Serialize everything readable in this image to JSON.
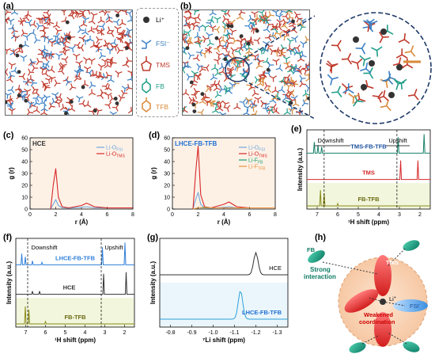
{
  "panels": {
    "a": {
      "label": "(a)"
    },
    "b": {
      "label": "(b)"
    },
    "c": {
      "label": "(c)",
      "title": "HCE",
      "legend": [
        "Li-O",
        "Li-O"
      ],
      "legend_sub": [
        "FSI",
        "TMS"
      ],
      "xlabel": "r (Å)",
      "ylabel": "g (r)",
      "yticks": [
        "0",
        "10",
        "20",
        "30",
        "40",
        "50",
        "60"
      ],
      "xticks": [
        "0",
        "2",
        "4",
        "6",
        "8"
      ]
    },
    "d": {
      "label": "(d)",
      "title": "LHCE-FB-TFB",
      "legend": [
        "Li-O",
        "Li-O",
        "Li-F",
        "Li-F"
      ],
      "legend_sub": [
        "FSI",
        "TMS",
        "FB",
        "TFB"
      ],
      "xlabel": "r (Å)",
      "ylabel": "g (r)",
      "yticks": [
        "0",
        "10",
        "20",
        "30",
        "40",
        "50",
        "60"
      ],
      "xticks": [
        "0",
        "2",
        "4",
        "6",
        "8"
      ]
    },
    "e": {
      "label": "(e)",
      "downshift": "Downshift",
      "upshift": "Upshift",
      "traces": [
        "TMS-FB-TFB",
        "TMS",
        "FB-TFB"
      ],
      "ylabel": "Intensity (a.u.)",
      "xlabel": "¹H shift (ppm)",
      "xticks": [
        "7",
        "6",
        "5",
        "4",
        "3",
        "2"
      ]
    },
    "f": {
      "label": "(f)",
      "downshift": "Downshift",
      "upshift": "Upshift",
      "traces": [
        "LHCE-FB-TFB",
        "HCE",
        "FB-TFB"
      ],
      "ylabel": "Intensity (a.u.)",
      "xlabel": "¹H shift (ppm)",
      "xticks": [
        "7",
        "6",
        "5",
        "4",
        "3",
        "2"
      ]
    },
    "g": {
      "label": "(g)",
      "traces": [
        "HCE",
        "LHCE-FB-TFB"
      ],
      "ylabel": "Intensity (a.u.)",
      "xlabel": "⁷Li shift (ppm)",
      "xticks": [
        "-0.8",
        "-0.9",
        "-1.0",
        "-1.1",
        "-1.2",
        "-1.3"
      ]
    },
    "h": {
      "label": "(h)",
      "fb": "FB",
      "tms": "TMS",
      "li": "Li",
      "fsi": "FSI",
      "strong": "Strong interaction",
      "weakened": "Weakened coordination"
    }
  },
  "legend_ab": {
    "items": [
      {
        "name": "Li⁺",
        "color": "#333333"
      },
      {
        "name": "FSI⁻",
        "color": "#3b7fc4"
      },
      {
        "name": "TMS",
        "color": "#c0392b"
      },
      {
        "name": "FB",
        "color": "#1f9e89"
      },
      {
        "name": "TFB",
        "color": "#d98a3a"
      }
    ]
  },
  "colors": {
    "fsi": "#6fa8dc",
    "tms": "#d62728",
    "fb": "#1a9e6f",
    "tfb": "#e69138",
    "panel_bg": "#fdf1e6"
  },
  "chart_data": [
    {
      "type": "line",
      "title": "HCE",
      "xlabel": "r (Å)",
      "ylabel": "g (r)",
      "xlim": [
        0,
        8
      ],
      "ylim": [
        0,
        60
      ],
      "series": [
        {
          "name": "Li-O FSI",
          "x": [
            1.6,
            1.8,
            2.0,
            2.2,
            2.5,
            3.0,
            4.0,
            4.4,
            5.0,
            6.0,
            8.0
          ],
          "y": [
            0,
            4,
            8,
            3,
            1,
            0.8,
            1.5,
            2,
            1,
            1,
            1
          ]
        },
        {
          "name": "Li-O TMS",
          "x": [
            1.6,
            1.8,
            2.0,
            2.2,
            2.5,
            3.0,
            4.0,
            4.4,
            5.0,
            6.0,
            8.0
          ],
          "y": [
            0,
            20,
            34,
            10,
            2,
            1,
            3,
            5,
            2,
            1,
            1
          ]
        }
      ]
    },
    {
      "type": "line",
      "title": "LHCE-FB-TFB",
      "xlabel": "r (Å)",
      "ylabel": "g (r)",
      "xlim": [
        0,
        8
      ],
      "ylim": [
        0,
        60
      ],
      "series": [
        {
          "name": "Li-O FSI",
          "x": [
            1.6,
            1.8,
            2.0,
            2.2,
            2.5,
            3.0,
            4.0,
            4.4,
            5.0,
            6.0,
            8.0
          ],
          "y": [
            0,
            8,
            14,
            4,
            1,
            0.8,
            1.5,
            2,
            1,
            1,
            1
          ]
        },
        {
          "name": "Li-O TMS",
          "x": [
            1.6,
            1.8,
            2.0,
            2.2,
            2.5,
            3.0,
            4.0,
            4.4,
            5.0,
            6.0,
            8.0
          ],
          "y": [
            0,
            30,
            53,
            12,
            2,
            1,
            4,
            6,
            2,
            1,
            1
          ]
        },
        {
          "name": "Li-F FB",
          "x": [
            1.6,
            2.0,
            2.6,
            3.0,
            4.0,
            6.0,
            8.0
          ],
          "y": [
            0,
            1,
            1,
            1,
            1,
            1,
            1
          ]
        },
        {
          "name": "Li-F TFB",
          "x": [
            1.6,
            2.0,
            2.6,
            3.0,
            4.0,
            6.0,
            8.0
          ],
          "y": [
            0,
            1,
            1.5,
            1,
            1,
            1,
            1
          ]
        }
      ]
    }
  ]
}
